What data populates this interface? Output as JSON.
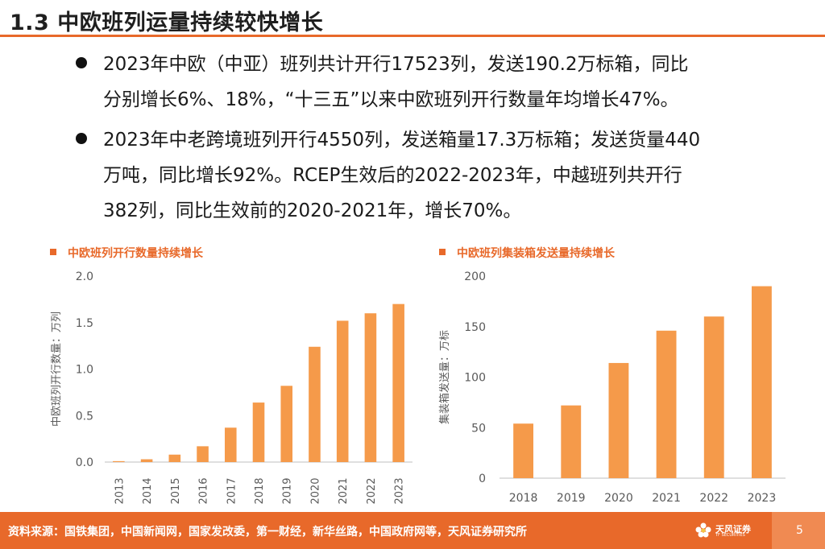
{
  "header": {
    "title": "1.3 中欧班列运量持续较快增长"
  },
  "bullets": [
    {
      "line1": "2023年中欧（中亚）班列共计开行17523列，发送190.2万标箱，同比",
      "line2": "分别增长6%、18%，“十三五”以来中欧班列开行数量年均增长47%。"
    },
    {
      "line1": "2023年中老跨境班列开行4550列，发送箱量17.3万标箱；发送货量440",
      "line2": "万吨，同比增长92%。RCEP生效后的2022-2023年，中越班列共开行",
      "line3": "382列，同比生效前的2020-2021年，增长70%。"
    }
  ],
  "chart_data": [
    {
      "type": "bar",
      "title": "中欧班列开行数量持续增长",
      "ylabel": "中欧班列开行数量：万列",
      "xlabel": "",
      "categories": [
        "2013",
        "2014",
        "2015",
        "2016",
        "2017",
        "2018",
        "2019",
        "2020",
        "2021",
        "2022",
        "2023"
      ],
      "values": [
        0.01,
        0.03,
        0.08,
        0.17,
        0.37,
        0.64,
        0.82,
        1.24,
        1.52,
        1.6,
        1.7
      ],
      "ylim": [
        0,
        2.0
      ],
      "yticks": [
        "0.0",
        "0.5",
        "1.0",
        "1.5",
        "2.0"
      ],
      "grid": false,
      "color": "#f59a4a"
    },
    {
      "type": "bar",
      "title": "中欧班列集装箱发送量持续增长",
      "ylabel": "集装箱发送量：万标",
      "xlabel": "",
      "categories": [
        "2018",
        "2019",
        "2020",
        "2021",
        "2022",
        "2023"
      ],
      "values": [
        54,
        72,
        114,
        146,
        160,
        190
      ],
      "ylim": [
        0,
        200
      ],
      "yticks": [
        "0",
        "50",
        "100",
        "150",
        "200"
      ],
      "grid": false,
      "color": "#f59a4a"
    }
  ],
  "footer": {
    "source": "资料来源：国铁集团，中国新闻网，国家发改委，第一财经，新华丝路，中国政府网等，天风证券研究所",
    "logo_text": "天风证券",
    "logo_sub": "TF SECURITIES",
    "page": "5"
  },
  "colors": {
    "accent": "#e8692a",
    "bar": "#f59a4a"
  }
}
